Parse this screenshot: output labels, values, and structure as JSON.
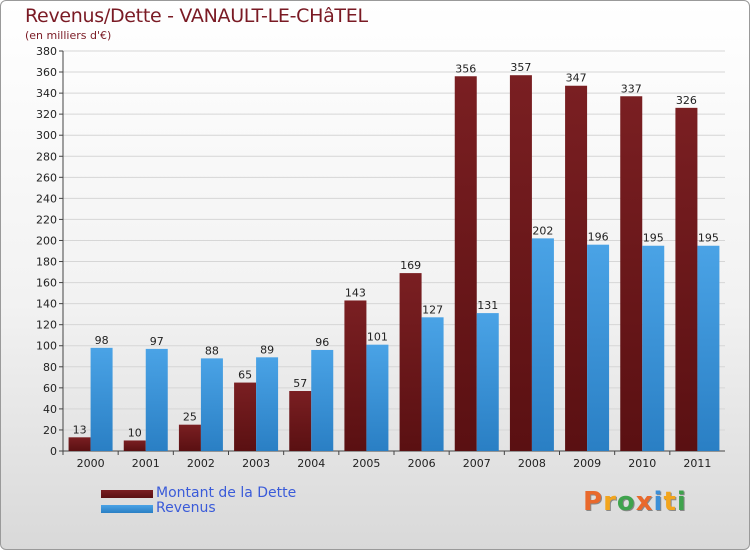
{
  "title": "Revenus/Dette - VANAULT-LE-CHâTEL",
  "subtitle": "(en milliers d'€)",
  "legend": {
    "debt_label": "Montant de la Dette",
    "revenue_label": "Revenus"
  },
  "logo_text": "Proxiti",
  "colors": {
    "debt": "#7a1f22",
    "debt_dark": "#5a1012",
    "revenue": "#4aa3e6",
    "revenue_dark": "#2a7fc4",
    "title": "#7a1a24",
    "legend_text": "#3a5bd9",
    "logo": [
      "#e9692c",
      "#f2a51d",
      "#3fa34d",
      "#e9692c",
      "#3b8fd8",
      "#f2a51d",
      "#3fa34d"
    ]
  },
  "chart_data": {
    "type": "bar",
    "categories": [
      "2000",
      "2001",
      "2002",
      "2003",
      "2004",
      "2005",
      "2006",
      "2007",
      "2008",
      "2009",
      "2010",
      "2011"
    ],
    "series": [
      {
        "name": "Montant de la Dette",
        "values": [
          13,
          10,
          25,
          65,
          57,
          143,
          169,
          356,
          357,
          347,
          337,
          326
        ]
      },
      {
        "name": "Revenus",
        "values": [
          98,
          97,
          88,
          89,
          96,
          101,
          127,
          131,
          202,
          196,
          195,
          195
        ]
      }
    ],
    "ylim": [
      0,
      380
    ],
    "ytick_step": 20,
    "grid": true,
    "legend_position": "bottom-left"
  }
}
